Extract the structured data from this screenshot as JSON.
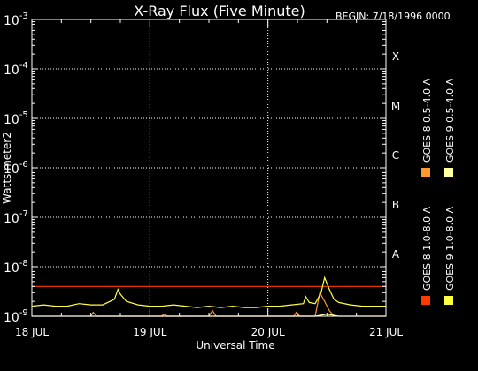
{
  "chart_data": {
    "type": "line",
    "title": "X-Ray Flux (Five Minute)",
    "begin_label": "BEGIN: 7/18/1996 0000",
    "xlabel": "Universal Time",
    "ylabel": "Watts meter2",
    "y_scale": "log",
    "ylim": [
      1e-09,
      0.001
    ],
    "y_ticks": [
      {
        "base": "10",
        "exp": "-3"
      },
      {
        "base": "10",
        "exp": "-4"
      },
      {
        "base": "10",
        "exp": "-5"
      },
      {
        "base": "10",
        "exp": "-6"
      },
      {
        "base": "10",
        "exp": "-7"
      },
      {
        "base": "10",
        "exp": "-8"
      },
      {
        "base": "10",
        "exp": "-9"
      }
    ],
    "x_ticks": [
      "18 JUL",
      "19 JUL",
      "20 JUL",
      "21 JUL"
    ],
    "xlim_days": [
      0,
      3
    ],
    "flare_classes": [
      {
        "label": "X",
        "level": 0.0001
      },
      {
        "label": "M",
        "level": 1e-05
      },
      {
        "label": "C",
        "level": 1e-06
      },
      {
        "label": "B",
        "level": 1e-07
      },
      {
        "label": "A",
        "level": 1e-08
      }
    ],
    "grid": {
      "horizontal": "dotted",
      "vertical": "dotted"
    },
    "series": [
      {
        "name": "GOES 8 1.0-8.0 A",
        "color": "#ff3a00",
        "x": [
          0.0,
          3.0
        ],
        "y": [
          4e-09,
          4e-09
        ]
      },
      {
        "name": "GOES 8 0.5-4.0 A",
        "color": "#ff9a30",
        "x": [
          0.5,
          0.52,
          0.55,
          1.1,
          1.12,
          1.15,
          1.5,
          1.53,
          1.56,
          2.22,
          2.24,
          2.27,
          2.4,
          2.44,
          2.48,
          2.52,
          2.56
        ],
        "y": [
          1e-09,
          1.2e-09,
          1e-09,
          1e-09,
          1.1e-09,
          1e-09,
          1e-09,
          1.3e-09,
          1e-09,
          1e-09,
          1.2e-09,
          1e-09,
          1e-09,
          3e-09,
          2e-09,
          1.3e-09,
          1e-09
        ]
      },
      {
        "name": "GOES 9 1.0-8.0 A",
        "color": "#ffff40",
        "x": [
          0.0,
          0.1,
          0.2,
          0.3,
          0.4,
          0.5,
          0.6,
          0.7,
          0.73,
          0.75,
          0.8,
          0.9,
          1.0,
          1.1,
          1.2,
          1.3,
          1.4,
          1.5,
          1.6,
          1.7,
          1.8,
          1.9,
          2.0,
          2.1,
          2.2,
          2.3,
          2.32,
          2.35,
          2.4,
          2.45,
          2.48,
          2.52,
          2.56,
          2.6,
          2.7,
          2.8,
          2.9,
          3.0
        ],
        "y": [
          1.6e-09,
          1.7e-09,
          1.6e-09,
          1.6e-09,
          1.8e-09,
          1.7e-09,
          1.7e-09,
          2.2e-09,
          3.5e-09,
          2.8e-09,
          2e-09,
          1.7e-09,
          1.6e-09,
          1.6e-09,
          1.7e-09,
          1.6e-09,
          1.5e-09,
          1.6e-09,
          1.5e-09,
          1.6e-09,
          1.5e-09,
          1.5e-09,
          1.6e-09,
          1.6e-09,
          1.7e-09,
          1.8e-09,
          2.5e-09,
          1.9e-09,
          1.8e-09,
          3e-09,
          6e-09,
          3.5e-09,
          2.2e-09,
          1.9e-09,
          1.7e-09,
          1.6e-09,
          1.6e-09,
          1.6e-09
        ]
      },
      {
        "name": "GOES 9 0.5-4.0 A",
        "color": "#ffffa0",
        "x": [
          0.0,
          0.2,
          0.4,
          0.6,
          0.8,
          1.0,
          1.2,
          1.4,
          1.6,
          1.8,
          2.0,
          2.2,
          2.4,
          2.5,
          2.6,
          2.8,
          3.0
        ],
        "y": [
          1e-09,
          1e-09,
          1e-09,
          1e-09,
          1e-09,
          1e-09,
          1e-09,
          1e-09,
          1e-09,
          1e-09,
          1e-09,
          1e-09,
          1e-09,
          1.1e-09,
          1e-09,
          1e-09,
          1e-09
        ]
      }
    ],
    "legend_placement": "right, vertical",
    "background": "#000000"
  }
}
